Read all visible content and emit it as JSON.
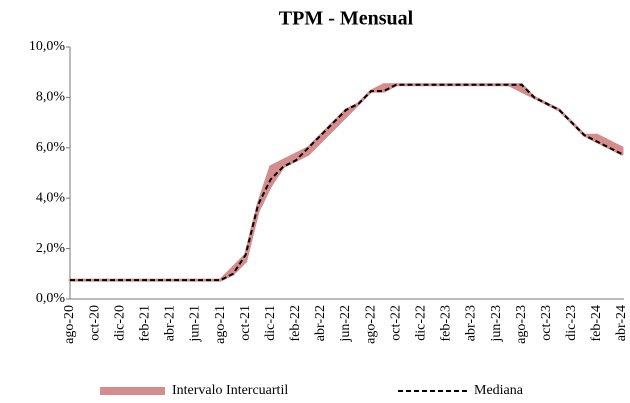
{
  "chart_data": {
    "type": "line",
    "title": "TPM - Mensual",
    "categories": [
      "ago-20",
      null,
      "oct-20",
      null,
      "dic-20",
      null,
      "feb-21",
      null,
      "abr-21",
      null,
      "jun-21",
      null,
      "ago-21",
      null,
      "oct-21",
      null,
      "dic-21",
      null,
      "feb-22",
      null,
      "abr-22",
      null,
      "jun-22",
      null,
      "ago-22",
      null,
      "oct-22",
      null,
      "dic-22",
      null,
      "feb-23",
      null,
      "abr-23",
      null,
      "jun-23",
      null,
      "ago-23",
      null,
      "oct-23",
      null,
      "dic-23",
      null,
      "feb-24",
      null,
      "abr-24"
    ],
    "band": {
      "name": "Intervalo Intercuartil",
      "color": "#d48c8c",
      "lower": [
        0.75,
        0.75,
        0.75,
        0.75,
        0.75,
        0.75,
        0.75,
        0.75,
        0.75,
        0.75,
        0.75,
        0.75,
        0.75,
        1.0,
        1.5,
        3.5,
        4.5,
        5.25,
        5.5,
        5.75,
        6.25,
        6.75,
        7.25,
        7.75,
        8.25,
        8.25,
        8.5,
        8.5,
        8.5,
        8.5,
        8.5,
        8.5,
        8.5,
        8.5,
        8.5,
        8.5,
        8.25,
        8.0,
        7.75,
        7.5,
        7.0,
        6.5,
        6.25,
        6.0,
        5.75
      ],
      "upper": [
        0.75,
        0.75,
        0.75,
        0.75,
        0.75,
        0.75,
        0.75,
        0.75,
        0.75,
        0.75,
        0.75,
        0.75,
        0.75,
        1.25,
        1.75,
        3.75,
        5.25,
        5.5,
        5.75,
        6.0,
        6.5,
        7.0,
        7.5,
        7.75,
        8.25,
        8.5,
        8.5,
        8.5,
        8.5,
        8.5,
        8.5,
        8.5,
        8.5,
        8.5,
        8.5,
        8.5,
        8.5,
        8.0,
        7.75,
        7.5,
        7.0,
        6.5,
        6.5,
        6.25,
        6.0
      ]
    },
    "series": [
      {
        "name": "Mediana",
        "color": "#000000",
        "values": [
          0.75,
          0.75,
          0.75,
          0.75,
          0.75,
          0.75,
          0.75,
          0.75,
          0.75,
          0.75,
          0.75,
          0.75,
          0.75,
          1.0,
          1.75,
          3.75,
          4.75,
          5.25,
          5.5,
          6.0,
          6.5,
          7.0,
          7.5,
          7.75,
          8.25,
          8.25,
          8.5,
          8.5,
          8.5,
          8.5,
          8.5,
          8.5,
          8.5,
          8.5,
          8.5,
          8.5,
          8.5,
          8.0,
          7.75,
          7.5,
          7.0,
          6.5,
          6.25,
          6.0,
          5.75
        ]
      }
    ],
    "ylim": [
      0,
      10
    ],
    "yticks": [
      {
        "value": 0,
        "label": "0,0%"
      },
      {
        "value": 2,
        "label": "2,0%"
      },
      {
        "value": 4,
        "label": "4,0%"
      },
      {
        "value": 6,
        "label": "6,0%"
      },
      {
        "value": 8,
        "label": "8,0%"
      },
      {
        "value": 10,
        "label": "10,0%"
      }
    ],
    "grid": false
  }
}
